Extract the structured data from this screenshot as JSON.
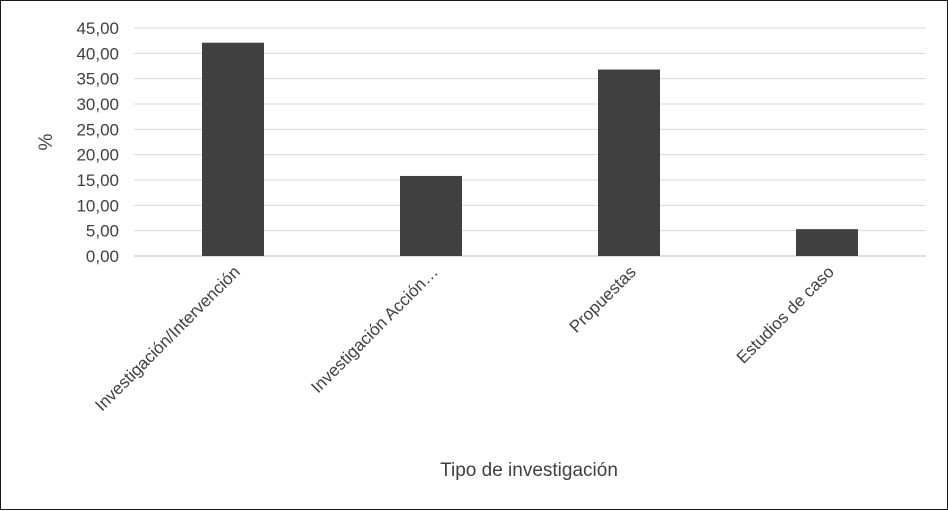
{
  "chart_data": {
    "type": "bar",
    "title": "",
    "xlabel": "Tipo de investigación",
    "ylabel": "%",
    "categories": [
      "Investigación/Intervención",
      "Investigación Acción…",
      "Propuestas",
      "Estudios de caso"
    ],
    "values": [
      42.1,
      15.8,
      36.8,
      5.3
    ],
    "ylim": [
      0,
      45
    ],
    "yticks": [
      "0,00",
      "5,00",
      "10,00",
      "15,00",
      "20,00",
      "25,00",
      "30,00",
      "35,00",
      "40,00",
      "45,00"
    ],
    "ytick_step": 5,
    "grid": "horizontal",
    "legend": "none",
    "bar_color": "#404040",
    "grid_color": "#d9d9d9"
  }
}
